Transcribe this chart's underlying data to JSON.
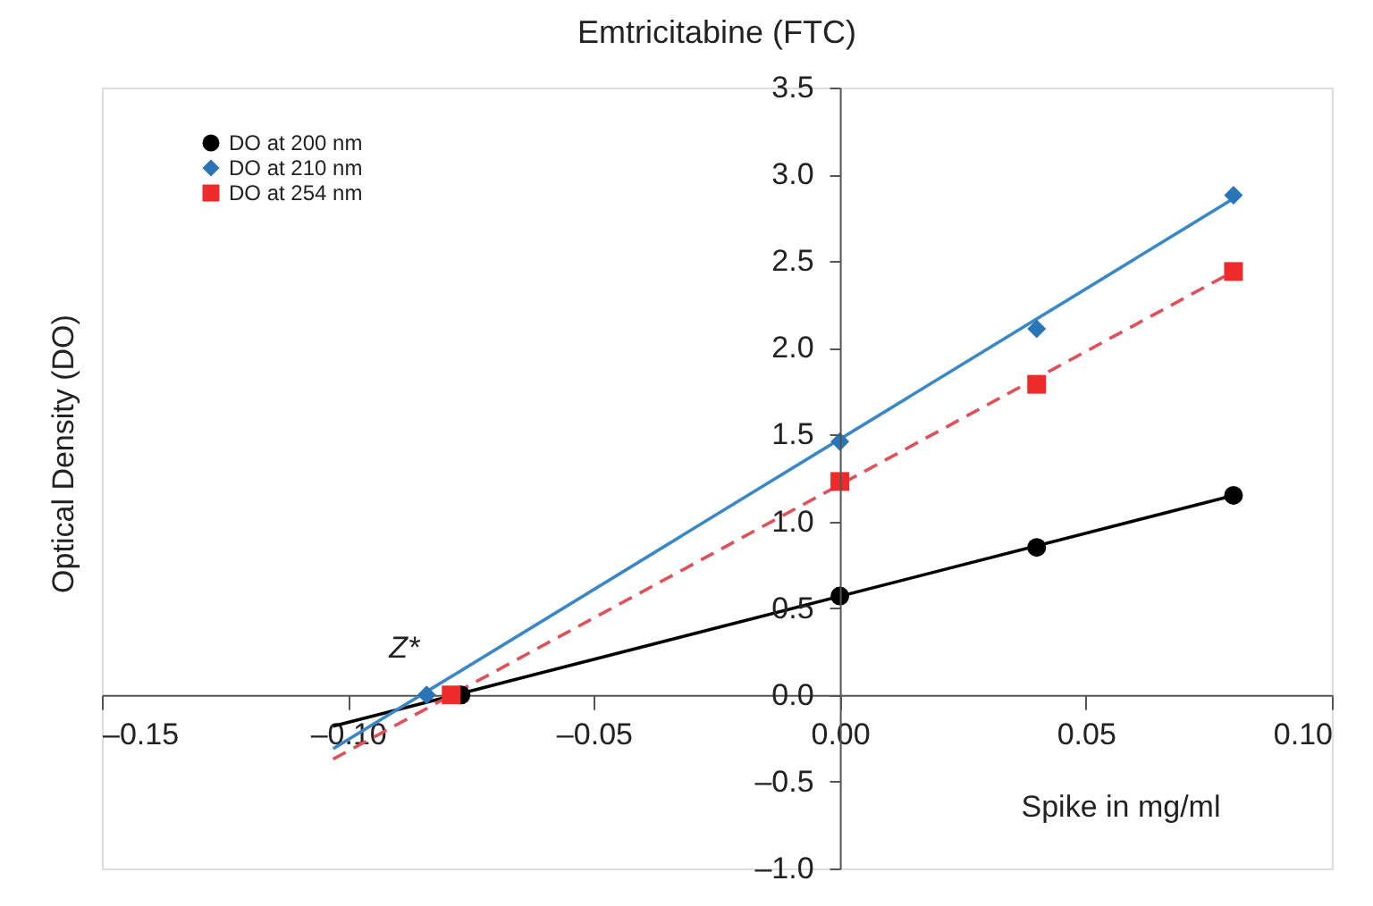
{
  "chart_data": {
    "type": "scatter",
    "title": "Emtricitabine (FTC)",
    "xlabel": "Spike in mg/ml",
    "ylabel": "Optical Density (DO)",
    "xlim": [
      -0.15,
      0.1
    ],
    "ylim": [
      -1.0,
      3.5
    ],
    "xticks": [
      {
        "value": -0.15,
        "label": "–0.15"
      },
      {
        "value": -0.1,
        "label": "–0.10"
      },
      {
        "value": -0.05,
        "label": "–0.05"
      },
      {
        "value": 0.0,
        "label": "0.00"
      },
      {
        "value": 0.05,
        "label": "0.05"
      },
      {
        "value": 0.1,
        "label": "0.10"
      }
    ],
    "yticks": [
      {
        "value": -1.0,
        "label": "–1.0"
      },
      {
        "value": -0.5,
        "label": "–0.5"
      },
      {
        "value": 0.0,
        "label": "0.0"
      },
      {
        "value": 0.5,
        "label": "0.5"
      },
      {
        "value": 1.0,
        "label": "1.0"
      },
      {
        "value": 1.5,
        "label": "1.5"
      },
      {
        "value": 2.0,
        "label": "2.0"
      },
      {
        "value": 2.5,
        "label": "2.5"
      },
      {
        "value": 3.0,
        "label": "3.0"
      },
      {
        "value": 3.5,
        "label": "3.5"
      }
    ],
    "grid": false,
    "legend": "top left",
    "annotations": [
      {
        "text": "Z*",
        "x": -0.084,
        "y": 0.0
      }
    ],
    "series": [
      {
        "type": "line",
        "color": "#000000",
        "line_style": "solid",
        "marker": "none",
        "x": [
          -0.103,
          0.08
        ],
        "values": [
          -0.18,
          1.15
        ]
      },
      {
        "type": "line",
        "color": "#3a87c8",
        "line_style": "solid",
        "marker": "none",
        "x": [
          -0.103,
          0.08
        ],
        "values": [
          -0.31,
          2.86
        ]
      },
      {
        "type": "line",
        "color": "#e0505a",
        "line_style": "dashed",
        "marker": "none",
        "x": [
          -0.103,
          0.08
        ],
        "values": [
          -0.37,
          2.44
        ]
      },
      {
        "type": "scatter",
        "name": "DO at 200 nm",
        "color": "#000000",
        "marker": "circle",
        "x": [
          -0.077,
          0.0,
          0.04,
          0.08
        ],
        "values": [
          0.0,
          0.57,
          0.85,
          1.15
        ]
      },
      {
        "type": "scatter",
        "name": "DO at 210 nm",
        "color": "#2a74b8",
        "marker": "diamond",
        "x": [
          -0.084,
          0.0,
          0.04,
          0.08
        ],
        "values": [
          0.0,
          1.46,
          2.11,
          2.88
        ]
      },
      {
        "type": "scatter",
        "name": "DO at 254 nm",
        "color": "#ee2a2a",
        "marker": "square",
        "x": [
          -0.079,
          0.0,
          0.04,
          0.08
        ],
        "values": [
          0.0,
          1.23,
          1.79,
          2.44
        ]
      }
    ]
  }
}
